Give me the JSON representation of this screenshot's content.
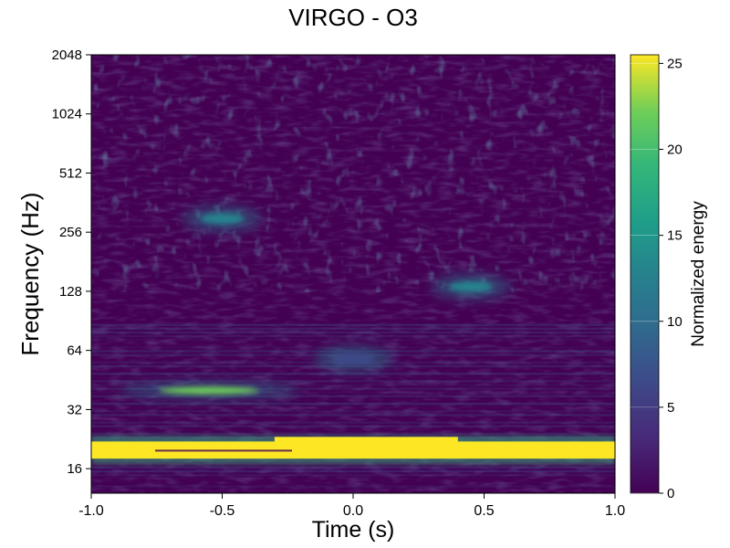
{
  "chart_data": {
    "type": "heatmap",
    "title": "VIRGO - O3",
    "xlabel": "Time (s)",
    "ylabel": "Frequency (Hz)",
    "xlim": [
      -1.0,
      1.0
    ],
    "ylim": [
      12,
      2048
    ],
    "yscale": "log2",
    "x_ticks": [
      -1.0,
      -0.5,
      0.0,
      0.5,
      1.0
    ],
    "x_tick_labels": [
      "-1.0",
      "-0.5",
      "0.0",
      "0.5",
      "1.0"
    ],
    "y_ticks": [
      16,
      32,
      64,
      128,
      256,
      512,
      1024,
      2048
    ],
    "y_tick_labels": [
      "16",
      "32",
      "64",
      "128",
      "256",
      "512",
      "1024",
      "2048"
    ],
    "colorbar": {
      "label": "Normalized energy",
      "colormap": "viridis",
      "range": [
        0,
        25.5
      ],
      "ticks": [
        0,
        5,
        10,
        15,
        20,
        25
      ],
      "tick_labels": [
        "0",
        "5",
        "10",
        "15",
        "20",
        "25"
      ]
    },
    "features": [
      {
        "time_range": [
          -1.0,
          1.0
        ],
        "frequency_range": [
          18,
          22
        ],
        "energy": 25.5
      },
      {
        "time": -0.55,
        "frequency": 40,
        "energy": 24
      },
      {
        "time": -0.5,
        "frequency": 300,
        "energy": 14
      },
      {
        "time": 0.45,
        "frequency": 135,
        "energy": 13
      },
      {
        "time": 0.0,
        "frequency": 58,
        "energy": 7
      }
    ]
  }
}
